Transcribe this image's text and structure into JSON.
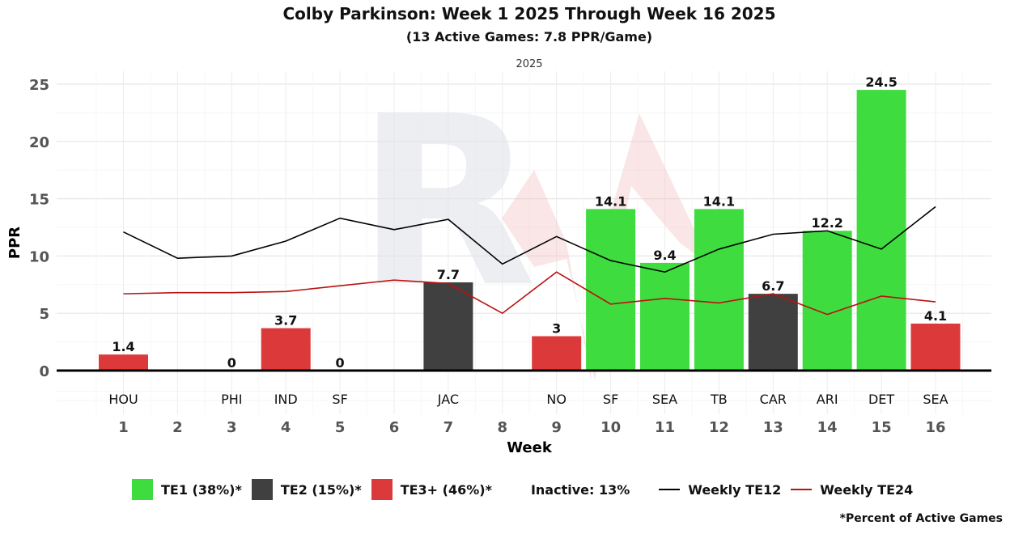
{
  "chart_data": {
    "type": "bar",
    "title": "Colby Parkinson: Week 1 2025 Through Week 16 2025",
    "subtitle": "(13 Active Games: 7.8 PPR/Game)",
    "facet_label": "2025",
    "xlabel": "Week",
    "ylabel": "PPR",
    "ylim": [
      0,
      25
    ],
    "yticks": [
      0,
      5,
      10,
      15,
      20,
      25
    ],
    "weeks": [
      1,
      2,
      3,
      4,
      5,
      6,
      7,
      8,
      9,
      10,
      11,
      12,
      13,
      14,
      15,
      16
    ],
    "opponents": [
      "HOU",
      "",
      "PHI",
      "IND",
      "SF",
      "",
      "JAC",
      "",
      "NO",
      "SF",
      "SEA",
      "TB",
      "CAR",
      "ARI",
      "DET",
      "SEA"
    ],
    "ppr": [
      1.4,
      null,
      0,
      3.7,
      0,
      null,
      7.7,
      null,
      3,
      14.1,
      9.4,
      14.1,
      6.7,
      12.2,
      24.5,
      4.1
    ],
    "tier": [
      "TE3+",
      null,
      "TE3+",
      "TE3+",
      "TE3+",
      null,
      "TE2",
      null,
      "TE3+",
      "TE1",
      "TE1",
      "TE1",
      "TE2",
      "TE1",
      "TE1",
      "TE3+"
    ],
    "series": [
      {
        "name": "Weekly TE12",
        "color": "#000000",
        "values": [
          12.1,
          9.8,
          10.0,
          11.3,
          13.3,
          12.3,
          13.2,
          9.3,
          11.7,
          9.6,
          8.6,
          10.6,
          11.9,
          12.2,
          10.6,
          14.3
        ]
      },
      {
        "name": "Weekly TE24",
        "color": "#bb1111",
        "values": [
          6.7,
          6.8,
          6.8,
          6.9,
          7.4,
          7.9,
          7.6,
          5.0,
          8.6,
          5.8,
          6.3,
          5.9,
          6.7,
          4.9,
          6.5,
          6.0
        ]
      }
    ],
    "tier_colors": {
      "TE1": "#3fdc3f",
      "TE2": "#404040",
      "TE3+": "#dc3a3a"
    },
    "legend": {
      "te1": "TE1 (38%)*",
      "te2": "TE2 (15%)*",
      "te3": "TE3+ (46%)*",
      "inactive": "Inactive: 13%",
      "te12": "Weekly TE12",
      "te24": "Weekly TE24"
    },
    "legend_position": "bottom",
    "grid": true,
    "footnote": "*Percent of Active Games"
  }
}
